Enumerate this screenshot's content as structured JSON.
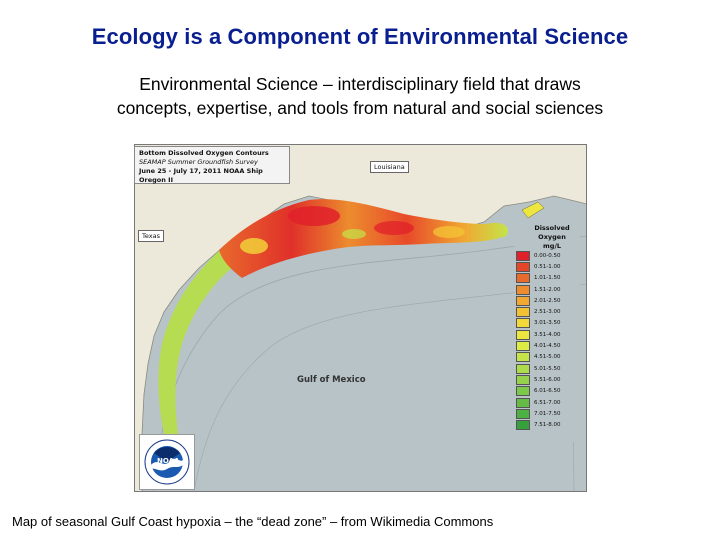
{
  "slide": {
    "title": "Ecology is a Component of Environmental Science",
    "subtitle_line1": "Environmental Science – interdisciplinary field that draws",
    "subtitle_line2": "concepts, expertise, and tools from natural and social sciences",
    "caption": "Map of seasonal Gulf Coast hypoxia – the “dead zone” – from Wikimedia Commons"
  },
  "map": {
    "info_line1": "Bottom Dissolved Oxygen Contours",
    "info_line2": "SEAMAP Summer Groundfish Survey",
    "info_line3": "June 25 - July 17, 2011 NOAA Ship Oregon II",
    "label_louisiana": "Louisiana",
    "label_texas": "Texas",
    "label_gulf": "Gulf of Mexico",
    "legend_title_line1": "Dissolved Oxygen",
    "legend_title_line2": "mg/L",
    "logo_text": "NOAA",
    "legend": [
      {
        "label": "0.00-0.50",
        "color": "#e0202a"
      },
      {
        "label": "0.51-1.00",
        "color": "#e4462a"
      },
      {
        "label": "1.01-1.50",
        "color": "#e86a2c"
      },
      {
        "label": "1.51-2.00",
        "color": "#ec8c2e"
      },
      {
        "label": "2.01-2.50",
        "color": "#f0a832"
      },
      {
        "label": "2.51-3.00",
        "color": "#f3c234"
      },
      {
        "label": "3.01-3.50",
        "color": "#f3d83a"
      },
      {
        "label": "3.51-4.00",
        "color": "#eee640"
      },
      {
        "label": "4.01-4.50",
        "color": "#dcec44"
      },
      {
        "label": "4.51-5.00",
        "color": "#c4e44a"
      },
      {
        "label": "5.01-5.50",
        "color": "#acdc4c"
      },
      {
        "label": "5.51-6.00",
        "color": "#94d24c"
      },
      {
        "label": "6.01-6.50",
        "color": "#7cc84a"
      },
      {
        "label": "6.51-7.00",
        "color": "#64bc46"
      },
      {
        "label": "7.01-7.50",
        "color": "#4cb042"
      },
      {
        "label": "7.51-8.00",
        "color": "#36a03c"
      }
    ]
  }
}
